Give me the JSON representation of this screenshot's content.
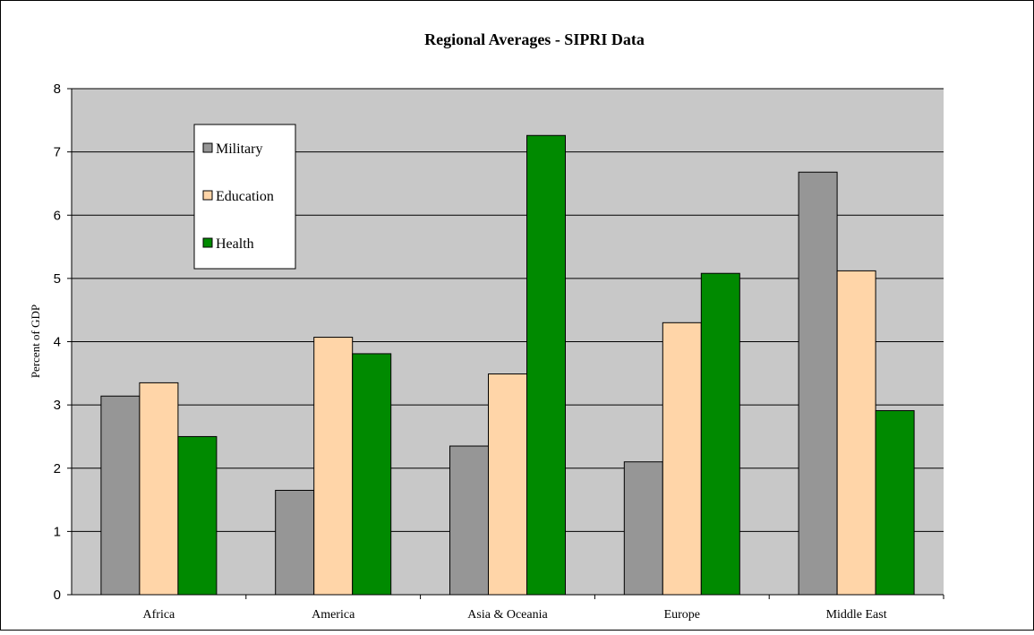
{
  "chart_data": {
    "type": "bar",
    "title": "Regional Averages - SIPRI Data",
    "xlabel": "",
    "ylabel": "Percent of GDP",
    "ylim": [
      0,
      8
    ],
    "yticks": [
      0,
      1,
      2,
      3,
      4,
      5,
      6,
      7,
      8
    ],
    "categories": [
      "Africa",
      "America",
      "Asia & Oceania",
      "Europe",
      "Middle East"
    ],
    "series": [
      {
        "name": "Military",
        "color": "#969696",
        "values": [
          3.14,
          1.65,
          2.35,
          2.1,
          6.68
        ]
      },
      {
        "name": "Education",
        "color": "#ffd5a8",
        "values": [
          3.35,
          4.07,
          3.49,
          4.3,
          5.12
        ]
      },
      {
        "name": "Health",
        "color": "#008a00",
        "values": [
          2.5,
          3.81,
          7.26,
          5.08,
          2.91
        ]
      }
    ],
    "plot_background": "#c8c8c8",
    "grid": true,
    "legend_position": "top-left"
  }
}
